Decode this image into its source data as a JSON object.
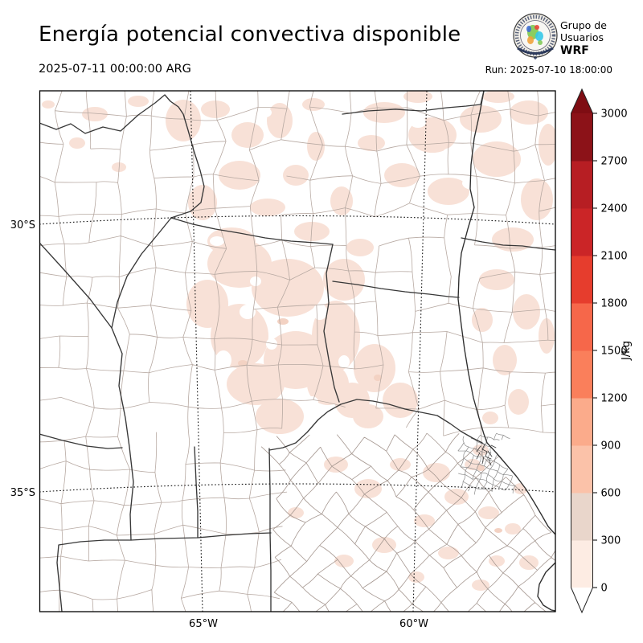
{
  "header": {
    "title": "Energía potencial convectiva disponible",
    "logo": {
      "line1": "Grupo de",
      "line2": "Usuarios",
      "line3": "WRF"
    }
  },
  "subheader": {
    "valid_datetime": "2025-07-11 00:00:00 ARG",
    "run_label": "Run: 2025-07-10 18:00:00"
  },
  "map": {
    "lat_labels": [
      "30°S",
      "35°S"
    ],
    "lon_labels": [
      "65°W",
      "60°W"
    ],
    "shade_fill_color": "#f8e1d7",
    "shade_fill_color_level2": "#f3d2c3",
    "province_boundary_color": "#383838",
    "department_line_color": "#b7a9a2"
  },
  "colorbar": {
    "unit": "J/kg",
    "tick_labels": [
      "0",
      "300",
      "600",
      "900",
      "1200",
      "1500",
      "1800",
      "2100",
      "2400",
      "2700",
      "3000"
    ],
    "colors_bottom_to_top": [
      "#fdece3",
      "#e9d6cb",
      "#fbc2a9",
      "#fbab8b",
      "#fa7f5b",
      "#f6674a",
      "#e63d2d",
      "#cb2527",
      "#b71e23",
      "#8c1218"
    ],
    "over_color": "#7f0d13",
    "under_color": "#ffffff"
  }
}
